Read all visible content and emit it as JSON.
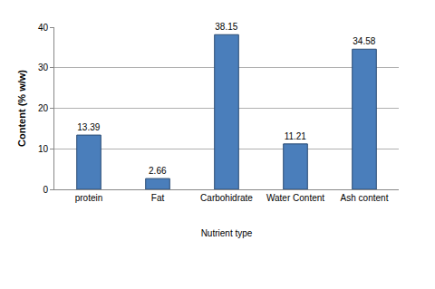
{
  "chart_data": {
    "type": "bar",
    "categories": [
      "protein",
      "Fat",
      "Carbohidrate",
      "Water Content",
      "Ash content"
    ],
    "values": [
      13.39,
      2.66,
      38.15,
      11.21,
      34.58
    ],
    "color": "#4a7ebb",
    "x_label": "Nutrient type",
    "y_label": "Content (% w/w)",
    "ylim": [
      0,
      40
    ],
    "yticks": [
      0,
      10,
      20,
      30,
      40
    ],
    "grid": true,
    "data_labels": true
  }
}
